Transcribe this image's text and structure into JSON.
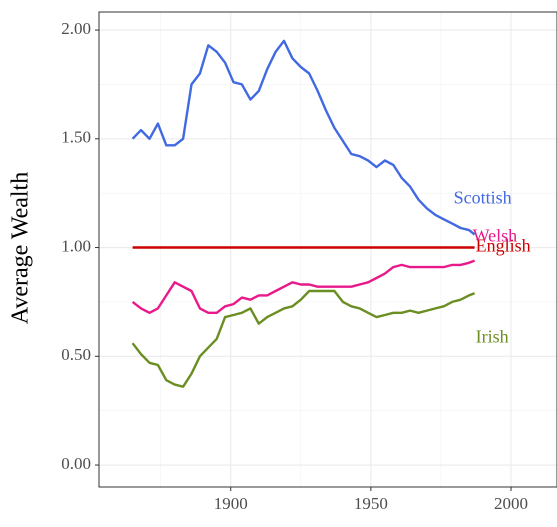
{
  "chart_data": {
    "type": "line",
    "y_label": "Average Wealth",
    "x": [
      1865,
      1868,
      1871,
      1874,
      1877,
      1880,
      1883,
      1886,
      1889,
      1892,
      1895,
      1898,
      1901,
      1904,
      1907,
      1910,
      1913,
      1916,
      1919,
      1922,
      1925,
      1928,
      1931,
      1934,
      1937,
      1940,
      1943,
      1946,
      1949,
      1952,
      1955,
      1958,
      1961,
      1964,
      1967,
      1970,
      1973,
      1976,
      1979,
      1982,
      1985,
      1987
    ],
    "series": [
      {
        "name": "Scottish",
        "color": "#4169e1",
        "values": [
          1.5,
          1.54,
          1.5,
          1.57,
          1.47,
          1.47,
          1.5,
          1.75,
          1.8,
          1.93,
          1.9,
          1.85,
          1.76,
          1.75,
          1.68,
          1.72,
          1.82,
          1.9,
          1.95,
          1.87,
          1.83,
          1.8,
          1.72,
          1.63,
          1.55,
          1.49,
          1.43,
          1.42,
          1.4,
          1.37,
          1.4,
          1.38,
          1.32,
          1.28,
          1.22,
          1.18,
          1.15,
          1.13,
          1.11,
          1.09,
          1.08,
          1.06
        ]
      },
      {
        "name": "English",
        "color": "#cc0000",
        "values": [
          1,
          1,
          1,
          1,
          1,
          1,
          1,
          1,
          1,
          1,
          1,
          1,
          1,
          1,
          1,
          1,
          1,
          1,
          1,
          1,
          1,
          1,
          1,
          1,
          1,
          1,
          1,
          1,
          1,
          1,
          1,
          1,
          1,
          1,
          1,
          1,
          1,
          1,
          1,
          1,
          1,
          1
        ]
      },
      {
        "name": "Welsh",
        "color": "#e8198b",
        "values": [
          0.75,
          0.72,
          0.7,
          0.72,
          0.78,
          0.84,
          0.82,
          0.8,
          0.72,
          0.7,
          0.7,
          0.73,
          0.74,
          0.77,
          0.76,
          0.78,
          0.78,
          0.8,
          0.82,
          0.84,
          0.83,
          0.83,
          0.82,
          0.82,
          0.82,
          0.82,
          0.82,
          0.83,
          0.84,
          0.86,
          0.88,
          0.91,
          0.92,
          0.91,
          0.91,
          0.91,
          0.91,
          0.91,
          0.92,
          0.92,
          0.93,
          0.94
        ]
      },
      {
        "name": "Irish",
        "color": "#6b8e23",
        "values": [
          0.56,
          0.51,
          0.47,
          0.46,
          0.39,
          0.37,
          0.36,
          0.42,
          0.5,
          0.54,
          0.58,
          0.68,
          0.69,
          0.7,
          0.72,
          0.65,
          0.68,
          0.7,
          0.72,
          0.73,
          0.76,
          0.8,
          0.8,
          0.8,
          0.8,
          0.75,
          0.73,
          0.72,
          0.7,
          0.68,
          0.69,
          0.7,
          0.7,
          0.71,
          0.7,
          0.71,
          0.72,
          0.73,
          0.75,
          0.76,
          0.78,
          0.79
        ]
      }
    ],
    "xlim": [
      1853,
      2016.4
    ],
    "xticks": [
      1900,
      1950,
      2000
    ],
    "ylim": [
      -0.101,
      2.083
    ],
    "yticks": [
      {
        "value": 0,
        "label": "0.00"
      },
      {
        "value": 0.5,
        "label": "0.50"
      },
      {
        "value": 1,
        "label": "1.00"
      },
      {
        "value": 1.5,
        "label": "1.50"
      },
      {
        "value": 2,
        "label": "2.00"
      }
    ],
    "grid": true,
    "legend": "direct"
  }
}
